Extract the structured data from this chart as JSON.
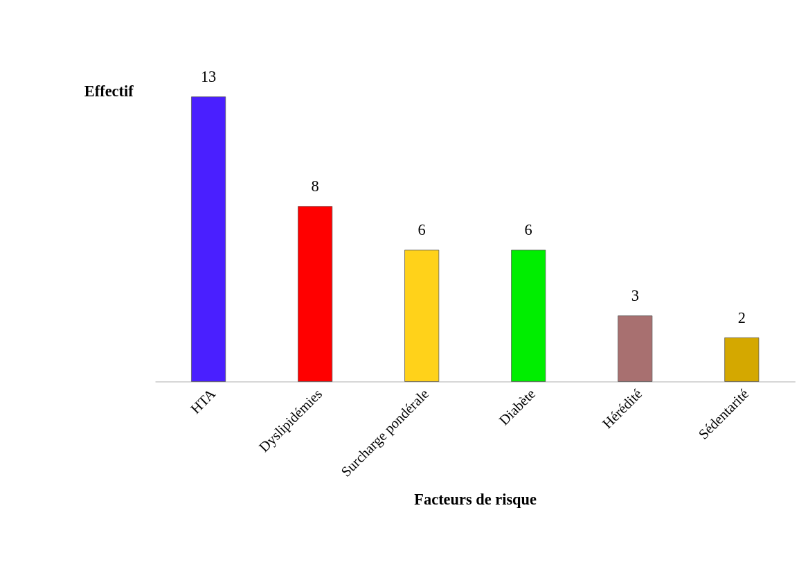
{
  "chart_data": {
    "type": "bar",
    "xlabel": "Facteurs de risque",
    "ylabel": "Effectif",
    "categories": [
      "HTA",
      "Dyslipidémies",
      "Surcharge pondérale",
      "Diabète",
      "Hérédité",
      "Sédentarité"
    ],
    "values": [
      13,
      8,
      6,
      6,
      3,
      2
    ],
    "colors": [
      "#4a1fff",
      "#ff0000",
      "#ffd21a",
      "#00ee00",
      "#a87070",
      "#d4a800"
    ],
    "data_labels": true,
    "grid": false,
    "legend": false
  }
}
